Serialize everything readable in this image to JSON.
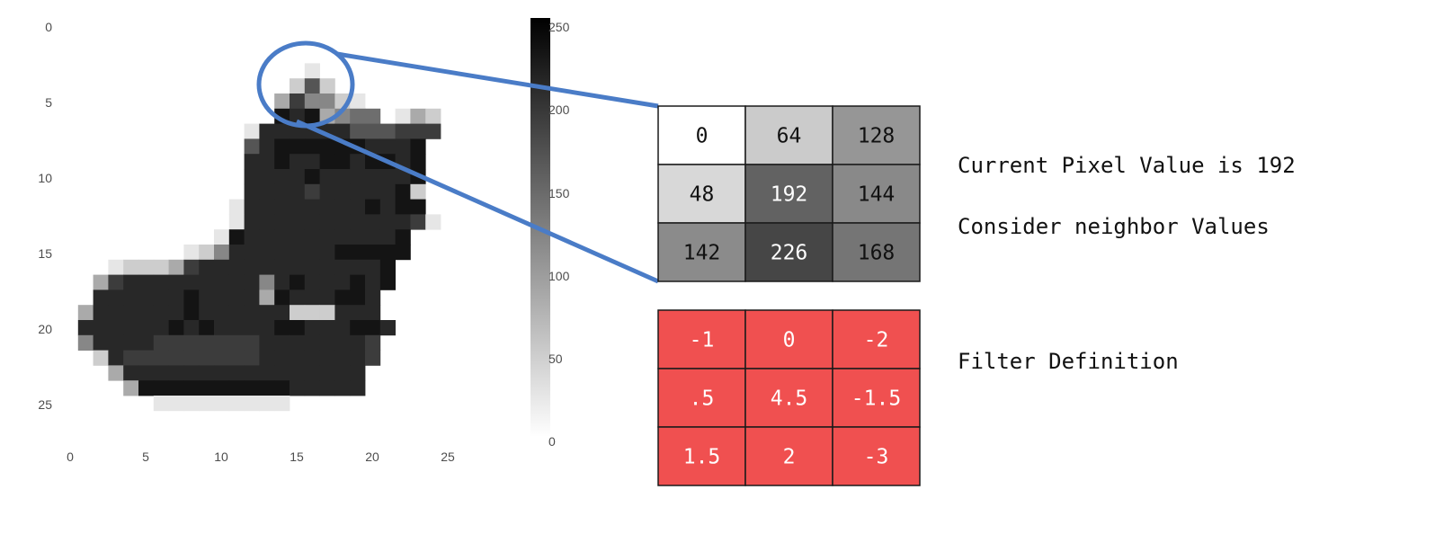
{
  "image_plot": {
    "x_ticks": [
      "0",
      "5",
      "10",
      "15",
      "20",
      "25"
    ],
    "y_ticks": [
      "0",
      "5",
      "10",
      "15",
      "20",
      "25"
    ],
    "colorbar_ticks": [
      "250",
      "200",
      "150",
      "100",
      "50",
      "0"
    ],
    "colormap": "gray_r",
    "pixels": [
      "............................",
      "............................",
      "............................",
      "................1...........",
      "...............262..........",
      "..............374421........",
      "..............9893455.132...",
      "............1888888666777...",
      "............689999998889....",
      "............889889989989....",
      "............888898888889....",
      "............888878888892....",
      "...........1888888889899....",
      "...........18888888888871...",
      "..........1988888888889.....",
      "........124888888899999.....",
      "...1222378888888888889....",
      "..37888888888489888989......",
      "..8888889888839888998.......",
      ".38888889888888222888.......",
      ".888888989888899888998......",
      ".48888777777788888887.......",
      "..2877777777788888887.......",
      "...38888888888888888........",
      "....3999999999988888........",
      "......111111111.............",
      "............................",
      "............................"
    ]
  },
  "pixel_grid": {
    "cells": [
      [
        "0",
        "64",
        "128"
      ],
      [
        "48",
        "192",
        "144"
      ],
      [
        "142",
        "226",
        "168"
      ]
    ],
    "gray_values": [
      [
        0,
        64,
        128
      ],
      [
        48,
        192,
        144
      ],
      [
        142,
        226,
        168
      ]
    ]
  },
  "filter_grid": {
    "cells": [
      [
        "-1",
        "0",
        "-2"
      ],
      [
        ".5",
        "4.5",
        "-1.5"
      ],
      [
        "1.5",
        "2",
        "-3"
      ]
    ],
    "fill_color": "#f05050"
  },
  "labels": {
    "current_pixel": "Current Pixel Value is 192",
    "consider_neighbors": "Consider neighbor Values",
    "filter_definition": "Filter Definition"
  },
  "colors": {
    "highlight": "#4a7cc7",
    "grid_border": "#1a1a1a"
  }
}
